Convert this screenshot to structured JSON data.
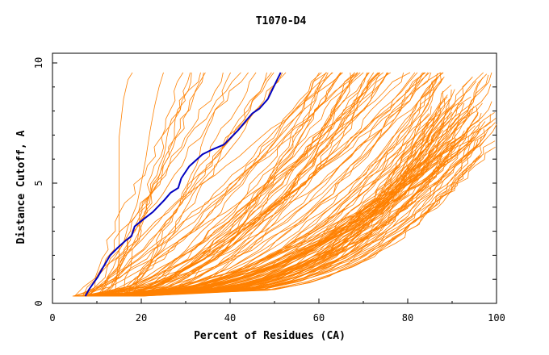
{
  "chart_data": {
    "type": "line",
    "title": "T1070-D4",
    "xlabel": "Percent of Residues (CA)",
    "ylabel": "Distance Cutoff, A",
    "xlim": [
      0,
      100
    ],
    "ylim": [
      0,
      10
    ],
    "x_ticks": [
      0,
      20,
      40,
      60,
      80,
      100
    ],
    "y_ticks": [
      0,
      5,
      10
    ],
    "grid": false,
    "background_series": {
      "color": "#ff8000",
      "count": 150,
      "description_examples": [
        {
          "x": [
            7,
            9,
            11,
            14,
            16,
            17,
            19,
            20,
            21,
            22,
            23,
            24,
            25
          ],
          "y": [
            0.3,
            0.8,
            1.3,
            1.9,
            2.5,
            3.2,
            4.1,
            5.0,
            6.0,
            7.2,
            8.2,
            9.0,
            9.6
          ]
        },
        {
          "x": [
            14,
            15,
            15,
            15,
            16,
            17,
            18
          ],
          "y": [
            0.3,
            2.0,
            4.0,
            6.9,
            8.5,
            9.3,
            9.6
          ]
        }
      ]
    },
    "highlight_series": {
      "color": "#0000c0",
      "x": [
        7.4,
        8.3,
        10.2,
        11.4,
        13.0,
        14.6,
        16.4,
        17.8,
        18.5,
        20.5,
        22.6,
        25.2,
        26.6,
        28.3,
        29.0,
        30.8,
        33.8,
        36.0,
        38.6,
        40.2,
        41.8,
        43.6,
        45.0,
        46.6,
        48.5,
        49.8,
        51.4
      ],
      "y": [
        0.3,
        0.6,
        1.1,
        1.5,
        2.0,
        2.3,
        2.6,
        2.8,
        3.2,
        3.5,
        3.8,
        4.3,
        4.6,
        4.8,
        5.2,
        5.7,
        6.2,
        6.4,
        6.6,
        6.9,
        7.2,
        7.6,
        7.9,
        8.1,
        8.5,
        9.0,
        9.6
      ]
    }
  }
}
